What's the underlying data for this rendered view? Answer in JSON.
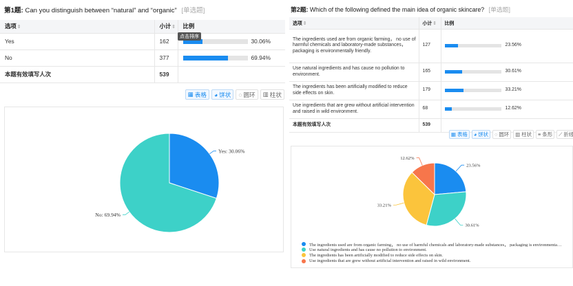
{
  "ui": {
    "col_option": "选项",
    "col_count": "小计",
    "col_ratio": "比例",
    "valid_label": "本题有效填写人次",
    "tooltip_sort": "点击排序",
    "sort_arrow": "⇕",
    "toolbar": {
      "table": "表格",
      "pie": "饼状",
      "ring": "圆环",
      "column": "柱状",
      "bar": "条形",
      "line": "折线"
    }
  },
  "q1": {
    "number": "第1题:",
    "text": "Can you distinguish between “natural” and “organic”",
    "type": "[单选题]",
    "total": "539",
    "rows": [
      {
        "label": "Yes",
        "count": "162",
        "pct_text": "30.06%"
      },
      {
        "label": "No",
        "count": "377",
        "pct_text": "69.94%"
      }
    ]
  },
  "q2": {
    "number": "第2题:",
    "text": "Which of the following defined the main idea of organic skincare?",
    "type": "[单选题]",
    "total": "539",
    "rows": [
      {
        "label": "The ingredients used are from organic farming， no use of harmful chemicals and laboratory-made substances， packaging is environmentally friendly.",
        "count": "127",
        "pct_text": "23.56%"
      },
      {
        "label": "Use natural ingredients and has cause no pollution to environment.",
        "count": "165",
        "pct_text": "30.61%"
      },
      {
        "label": "The ingredients has been artificially modified to reduce side effects on skin.",
        "count": "179",
        "pct_text": "33.21%"
      },
      {
        "label": "Use ingredients that are grew without artificial intervention and raised in wild environment.",
        "count": "68",
        "pct_text": "12.62%"
      }
    ],
    "legend": [
      "The ingredients used are from organic farming， no use of harmful chemicals and laboratory-made substances， packaging is environmenta…",
      "Use natural ingredients and has cause no pollution to environment.",
      "The ingredients has been artificially modified to reduce side effects on skin.",
      "Use ingredients that are grew without artificial intervention and raised in wild environment."
    ]
  },
  "chart_data": [
    {
      "type": "pie",
      "categories": [
        "Yes",
        "No"
      ],
      "values": [
        30.06,
        69.94
      ],
      "slice_labels": [
        "Yes: 30.06%",
        "No: 69.94%"
      ],
      "colors": [
        "#1a8cf0",
        "#3dd1c8"
      ],
      "legend": "none"
    },
    {
      "type": "pie",
      "categories": [
        "The ingredients used are from organic farming， no use of harmful chemicals and laboratory-made substances， packaging is environmentally friendly.",
        "Use natural ingredients and has cause no pollution to environment.",
        "The ingredients has been artificially modified to reduce side effects on skin.",
        "Use ingredients that are grew without artificial intervention and raised in wild environment."
      ],
      "values": [
        23.56,
        30.61,
        33.21,
        12.62
      ],
      "slice_labels": [
        "23.56%",
        "30.61%",
        "33.21%",
        "12.62%"
      ],
      "colors": [
        "#1a8cf0",
        "#3dd1c8",
        "#fbc43c",
        "#f7764b"
      ],
      "legend": "bottom"
    }
  ]
}
